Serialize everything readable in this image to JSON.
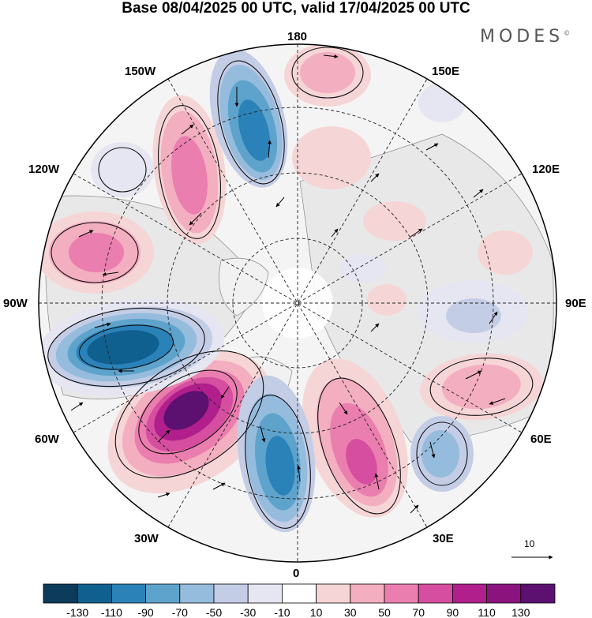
{
  "title": "Base 08/04/2025 00 UTC, valid 17/04/2025 00 UTC",
  "brand": "MODES",
  "brand_mark": "©",
  "longitude_labels": {
    "top": "180",
    "bottom": "0",
    "left": "90W",
    "right": "90E",
    "upper_left_1": "150W",
    "upper_left_2": "120W",
    "upper_right_1": "150E",
    "upper_right_2": "120E",
    "lower_left_1": "60W",
    "lower_left_2": "30W",
    "lower_right_1": "60E",
    "lower_right_2": "30E"
  },
  "reference_vector_label": "10",
  "colorbar": {
    "tick_labels": [
      "-130",
      "-110",
      "-90",
      "-70",
      "-50",
      "-30",
      "-10",
      "10",
      "30",
      "50",
      "70",
      "90",
      "110",
      "130"
    ],
    "colors": [
      "#0d3b5c",
      "#10608f",
      "#2a82b8",
      "#5ea3cc",
      "#96bcdd",
      "#c4cde6",
      "#e6e6f2",
      "#ffffff",
      "#f6d5d6",
      "#f3aec0",
      "#ea7eae",
      "#d64ea0",
      "#b01f8c",
      "#8b137e",
      "#5c1070"
    ]
  },
  "anomaly_centers": [
    {
      "region": "North Pacific 180-150W",
      "sign": "negative",
      "level": -90
    },
    {
      "region": "Gulf of Alaska 150W-120W",
      "sign": "positive",
      "level": 70
    },
    {
      "region": "Eastern North Pacific 120W",
      "sign": "positive",
      "level": 70
    },
    {
      "region": "Hudson Bay / Labrador 90W-70W",
      "sign": "negative",
      "level": -110
    },
    {
      "region": "North Atlantic 60W-30W",
      "sign": "positive",
      "level": 130
    },
    {
      "region": "Eastern Atlantic 20W-0",
      "sign": "negative",
      "level": -90
    },
    {
      "region": "Scandinavia / Eastern Europe 20E",
      "sign": "positive",
      "level": 90
    },
    {
      "region": "Black Sea 40E",
      "sign": "negative",
      "level": -50
    },
    {
      "region": "Central Asia 60E-70E",
      "sign": "positive",
      "level": 50
    },
    {
      "region": "Bering Sea 170E-180",
      "sign": "positive",
      "level": 50
    }
  ]
}
